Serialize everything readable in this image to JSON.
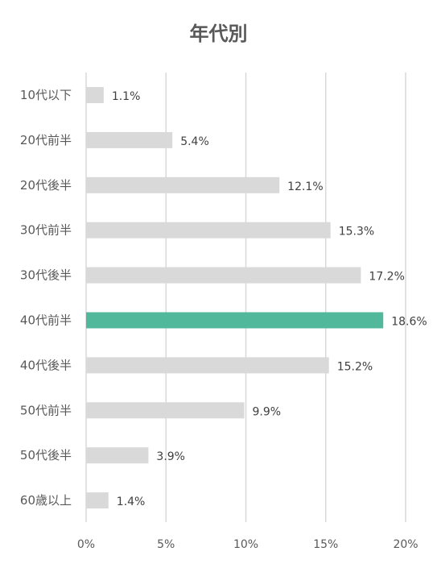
{
  "chart_data": {
    "type": "bar",
    "orientation": "horizontal",
    "title": "年代別",
    "xlabel": "",
    "ylabel": "",
    "categories": [
      "10代以下",
      "20代前半",
      "20代後半",
      "30代前半",
      "30代後半",
      "40代前半",
      "40代後半",
      "50代前半",
      "50代後半",
      "60歳以上"
    ],
    "values": [
      1.1,
      5.4,
      12.1,
      15.3,
      17.2,
      18.6,
      15.2,
      9.9,
      3.9,
      1.4
    ],
    "data_labels": [
      "1.1%",
      "5.4%",
      "12.1%",
      "15.3%",
      "17.2%",
      "18.6%",
      "15.2%",
      "9.9%",
      "3.9%",
      "1.4%"
    ],
    "xlim": [
      0,
      20
    ],
    "x_ticks": [
      0,
      5,
      10,
      15,
      20
    ],
    "x_tick_labels": [
      "0%",
      "5%",
      "10%",
      "15%",
      "20%"
    ],
    "grid": "vertical",
    "legend": "none",
    "highlight_index": 5,
    "colors": {
      "default_bar": "#d9d9d9",
      "highlight_bar": "#52b89b",
      "grid": "#d9d9d9"
    }
  }
}
